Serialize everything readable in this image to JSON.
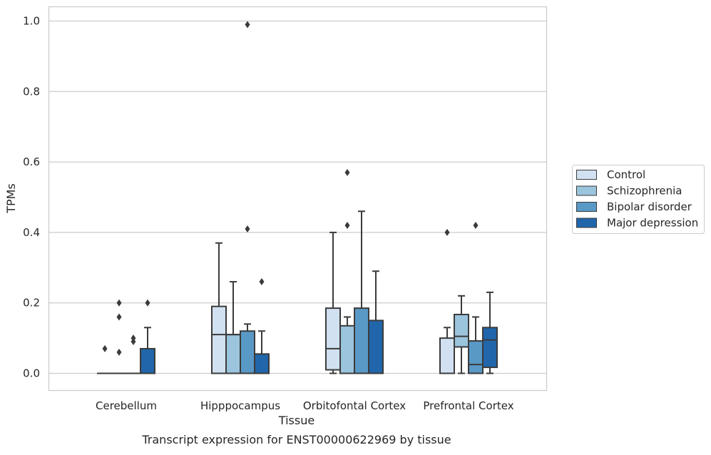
{
  "chart_data": {
    "type": "box",
    "xlabel": "Tissue",
    "ylabel": "TPMs",
    "caption": "Transcript expression for ENST00000622969 by tissue",
    "ylim": [
      -0.05,
      1.04
    ],
    "yticks": [
      "0.0",
      "0.2",
      "0.4",
      "0.6",
      "0.8",
      "1.0"
    ],
    "ytick_values": [
      0.0,
      0.2,
      0.4,
      0.6,
      0.8,
      1.0
    ],
    "grid": "horizontal",
    "legend_position": "right",
    "categories": [
      "Cerebellum",
      "Hipppocampus",
      "Orbitofontal Cortex",
      "Prefrontal Cortex"
    ],
    "series": [
      {
        "name": "Control",
        "color": "#d1e1f1",
        "boxes": [
          {
            "min": 0.0,
            "q1": 0.0,
            "median": 0.0,
            "q3": 0.0,
            "max": 0.0,
            "outliers": [
              0.07
            ]
          },
          {
            "min": 0.0,
            "q1": 0.0,
            "median": 0.11,
            "q3": 0.19,
            "max": 0.37,
            "outliers": []
          },
          {
            "min": 0.0,
            "q1": 0.01,
            "median": 0.07,
            "q3": 0.185,
            "max": 0.4,
            "outliers": []
          },
          {
            "min": 0.0,
            "q1": 0.0,
            "median": 0.0,
            "q3": 0.1,
            "max": 0.13,
            "outliers": [
              0.4
            ]
          }
        ]
      },
      {
        "name": "Schizophrenia",
        "color": "#9bc4dd",
        "boxes": [
          {
            "min": 0.0,
            "q1": 0.0,
            "median": 0.0,
            "q3": 0.0,
            "max": 0.0,
            "outliers": [
              0.06,
              0.16,
              0.2
            ]
          },
          {
            "min": 0.0,
            "q1": 0.0,
            "median": 0.11,
            "q3": 0.11,
            "max": 0.26,
            "outliers": []
          },
          {
            "min": 0.0,
            "q1": 0.0,
            "median": 0.0,
            "q3": 0.135,
            "max": 0.16,
            "outliers": [
              0.42,
              0.57
            ]
          },
          {
            "min": 0.0,
            "q1": 0.075,
            "median": 0.105,
            "q3": 0.167,
            "max": 0.22,
            "outliers": []
          }
        ]
      },
      {
        "name": "Bipolar disorder",
        "color": "#5999c6",
        "boxes": [
          {
            "min": 0.0,
            "q1": 0.0,
            "median": 0.0,
            "q3": 0.0,
            "max": 0.0,
            "outliers": [
              0.09,
              0.1
            ]
          },
          {
            "min": 0.0,
            "q1": 0.0,
            "median": 0.0,
            "q3": 0.12,
            "max": 0.14,
            "outliers": [
              0.41,
              0.99
            ]
          },
          {
            "min": 0.0,
            "q1": 0.0,
            "median": 0.0,
            "q3": 0.185,
            "max": 0.46,
            "outliers": []
          },
          {
            "min": 0.0,
            "q1": 0.0,
            "median": 0.025,
            "q3": 0.092,
            "max": 0.16,
            "outliers": [
              0.42
            ]
          }
        ]
      },
      {
        "name": "Major depression",
        "color": "#2166ab",
        "boxes": [
          {
            "min": 0.0,
            "q1": 0.0,
            "median": 0.0,
            "q3": 0.07,
            "max": 0.13,
            "outliers": [
              0.2
            ]
          },
          {
            "min": 0.0,
            "q1": 0.0,
            "median": 0.0,
            "q3": 0.055,
            "max": 0.12,
            "outliers": [
              0.26
            ]
          },
          {
            "min": 0.0,
            "q1": 0.0,
            "median": 0.0,
            "q3": 0.15,
            "max": 0.29,
            "outliers": []
          },
          {
            "min": 0.0,
            "q1": 0.017,
            "median": 0.095,
            "q3": 0.13,
            "max": 0.23,
            "outliers": []
          }
        ]
      }
    ]
  }
}
